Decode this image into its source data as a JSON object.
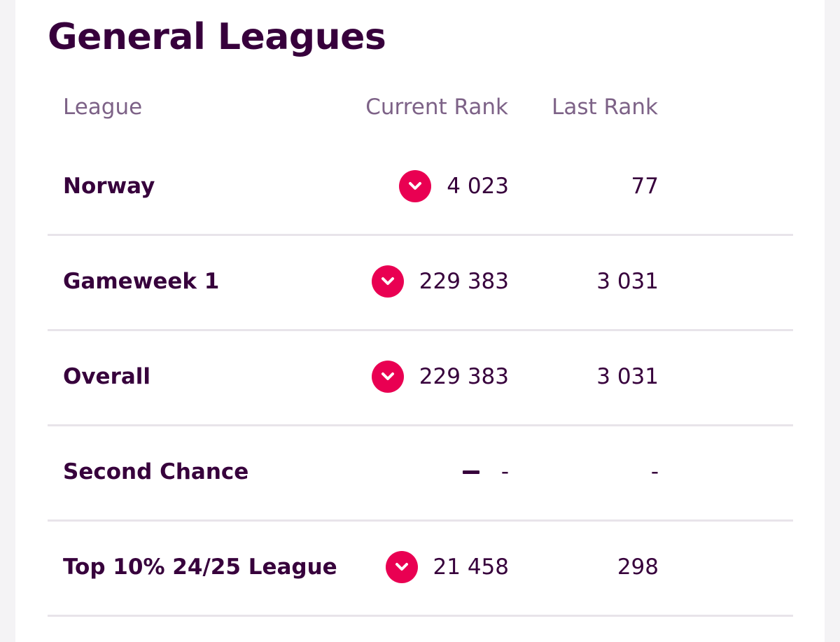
{
  "title": "General Leagues",
  "columns": {
    "league": "League",
    "current_rank": "Current Rank",
    "last_rank": "Last Rank"
  },
  "colors": {
    "primary": "#37003c",
    "header": "#7d6287",
    "down": "#e90052",
    "divider": "#e8e4ea"
  },
  "leagues": [
    {
      "name": "Norway",
      "movement": "down",
      "current_rank": "4 023",
      "last_rank": "77"
    },
    {
      "name": "Gameweek 1",
      "movement": "down",
      "current_rank": "229 383",
      "last_rank": "3 031"
    },
    {
      "name": "Overall",
      "movement": "down",
      "current_rank": "229 383",
      "last_rank": "3 031"
    },
    {
      "name": "Second Chance",
      "movement": "same",
      "current_rank": "-",
      "last_rank": "-"
    },
    {
      "name": "Top 10% 24/25 League",
      "movement": "down",
      "current_rank": "21 458",
      "last_rank": "298"
    }
  ],
  "icons": {
    "down": "chevron-down-icon",
    "same": "no-change-icon"
  }
}
